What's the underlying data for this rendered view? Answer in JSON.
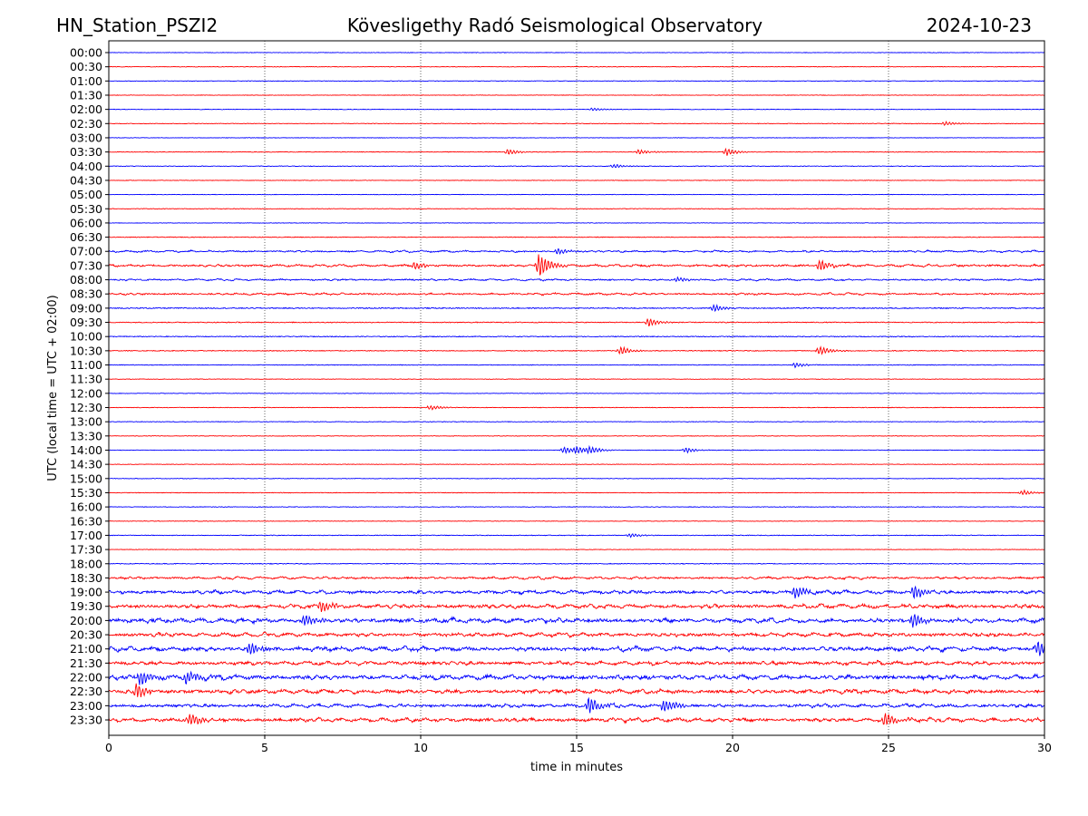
{
  "chart_data": {
    "type": "line",
    "station": "HN_Station_PSZI2",
    "title": "Kövesligethy Radó Seismological Observatory",
    "date": "2024-10-23",
    "xlabel": "time in minutes",
    "ylabel": "UTC (local time = UTC + 02:00)",
    "xlim": [
      0,
      30
    ],
    "xticks": [
      0,
      5,
      10,
      15,
      20,
      25,
      30
    ],
    "vertical_gridlines": [
      5,
      10,
      15,
      20,
      25
    ],
    "series_colors": [
      "#0000ff",
      "#ff0000"
    ],
    "rows": [
      "00:00",
      "00:30",
      "01:00",
      "01:30",
      "02:00",
      "02:30",
      "03:00",
      "03:30",
      "04:00",
      "04:30",
      "05:00",
      "05:30",
      "06:00",
      "06:30",
      "07:00",
      "07:30",
      "08:00",
      "08:30",
      "09:00",
      "09:30",
      "10:00",
      "10:30",
      "11:00",
      "11:30",
      "12:00",
      "12:30",
      "13:00",
      "13:30",
      "14:00",
      "14:30",
      "15:00",
      "15:30",
      "16:00",
      "16:30",
      "17:00",
      "17:30",
      "18:00",
      "18:30",
      "19:00",
      "19:30",
      "20:00",
      "20:30",
      "21:00",
      "21:30",
      "22:00",
      "22:30",
      "23:00",
      "23:30"
    ],
    "noise_level": [
      0.6,
      0.6,
      0.6,
      0.6,
      0.6,
      0.6,
      0.6,
      0.7,
      0.7,
      0.6,
      0.6,
      0.6,
      0.6,
      0.8,
      1.4,
      1.8,
      1.3,
      1.5,
      1.2,
      1.0,
      1.0,
      0.9,
      0.8,
      0.6,
      0.6,
      0.7,
      0.7,
      0.6,
      0.7,
      0.6,
      0.6,
      0.7,
      0.7,
      0.6,
      0.8,
      0.6,
      0.9,
      1.8,
      2.6,
      3.0,
      3.2,
      2.8,
      3.2,
      2.8,
      3.4,
      3.0,
      2.6,
      2.8
    ],
    "events": [
      {
        "row": "02:00",
        "minute": 15.5,
        "amplitude": 2.0
      },
      {
        "row": "02:30",
        "minute": 26.8,
        "amplitude": 2.5
      },
      {
        "row": "03:30",
        "minute": 12.8,
        "amplitude": 3.5
      },
      {
        "row": "03:30",
        "minute": 17.0,
        "amplitude": 3.0
      },
      {
        "row": "03:30",
        "minute": 19.8,
        "amplitude": 4.5
      },
      {
        "row": "04:00",
        "minute": 16.2,
        "amplitude": 2.5
      },
      {
        "row": "07:00",
        "minute": 14.4,
        "amplitude": 4.0
      },
      {
        "row": "07:30",
        "minute": 13.8,
        "amplitude": 14.0
      },
      {
        "row": "07:30",
        "minute": 9.8,
        "amplitude": 5.0
      },
      {
        "row": "07:30",
        "minute": 22.8,
        "amplitude": 7.0
      },
      {
        "row": "08:00",
        "minute": 18.2,
        "amplitude": 3.0
      },
      {
        "row": "09:00",
        "minute": 19.4,
        "amplitude": 4.0
      },
      {
        "row": "09:30",
        "minute": 17.3,
        "amplitude": 5.5
      },
      {
        "row": "10:30",
        "minute": 16.4,
        "amplitude": 5.0
      },
      {
        "row": "10:30",
        "minute": 22.8,
        "amplitude": 5.5
      },
      {
        "row": "11:00",
        "minute": 22.0,
        "amplitude": 3.0
      },
      {
        "row": "12:30",
        "minute": 10.3,
        "amplitude": 3.0
      },
      {
        "row": "14:00",
        "minute": 14.6,
        "amplitude": 4.0
      },
      {
        "row": "14:00",
        "minute": 15.0,
        "amplitude": 4.0
      },
      {
        "row": "14:00",
        "minute": 15.4,
        "amplitude": 4.5
      },
      {
        "row": "14:00",
        "minute": 18.5,
        "amplitude": 3.0
      },
      {
        "row": "15:30",
        "minute": 29.3,
        "amplitude": 3.0
      },
      {
        "row": "17:00",
        "minute": 16.7,
        "amplitude": 2.5
      },
      {
        "row": "19:00",
        "minute": 22.0,
        "amplitude": 7.0
      },
      {
        "row": "19:00",
        "minute": 25.8,
        "amplitude": 9.0
      },
      {
        "row": "19:30",
        "minute": 6.8,
        "amplitude": 8.0
      },
      {
        "row": "20:00",
        "minute": 25.8,
        "amplitude": 9.0
      },
      {
        "row": "20:00",
        "minute": 6.3,
        "amplitude": 7.0
      },
      {
        "row": "21:00",
        "minute": 4.5,
        "amplitude": 8.0
      },
      {
        "row": "21:00",
        "minute": 29.8,
        "amplitude": 10.0
      },
      {
        "row": "22:00",
        "minute": 1.0,
        "amplitude": 10.0
      },
      {
        "row": "22:00",
        "minute": 2.5,
        "amplitude": 9.0
      },
      {
        "row": "22:30",
        "minute": 0.9,
        "amplitude": 9.0
      },
      {
        "row": "23:00",
        "minute": 15.4,
        "amplitude": 11.0
      },
      {
        "row": "23:00",
        "minute": 17.8,
        "amplitude": 9.0
      },
      {
        "row": "23:30",
        "minute": 2.6,
        "amplitude": 8.0
      },
      {
        "row": "23:30",
        "minute": 24.9,
        "amplitude": 9.0
      }
    ]
  }
}
